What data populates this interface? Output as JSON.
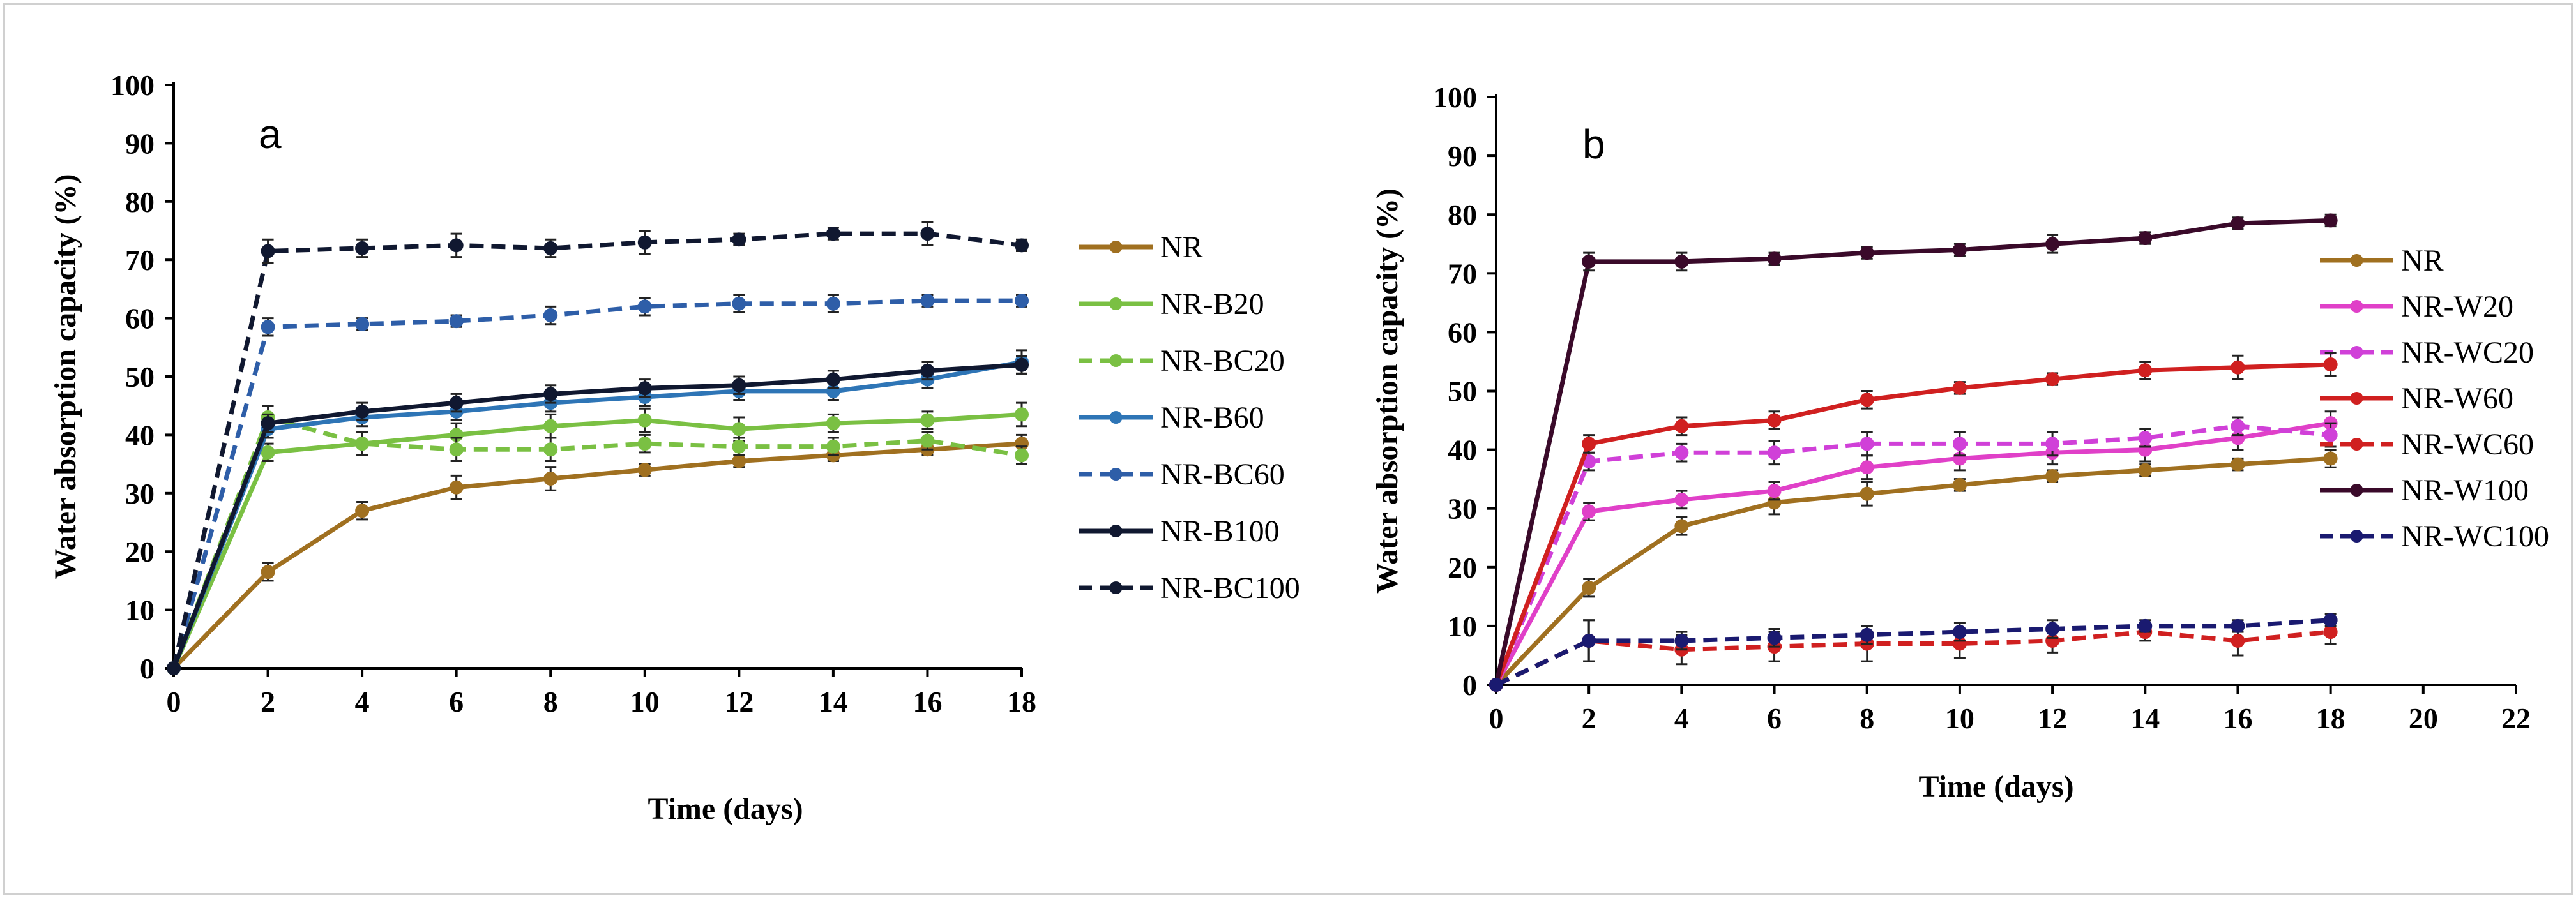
{
  "chart_data": [
    {
      "type": "line",
      "panel_label": "a",
      "title": "",
      "xlabel": "Time (days)",
      "ylabel": "Water absorption capacity (%)",
      "xlim": [
        0,
        18
      ],
      "ylim": [
        0,
        100
      ],
      "xticks": [
        "0",
        "2",
        "4",
        "6",
        "8",
        "10",
        "12",
        "14",
        "16",
        "18"
      ],
      "yticks": [
        "0",
        "10",
        "20",
        "30",
        "40",
        "50",
        "60",
        "70",
        "80",
        "90",
        "100"
      ],
      "grid": false,
      "legend_position": "right",
      "x": [
        0,
        2,
        4,
        6,
        8,
        10,
        12,
        14,
        16,
        18
      ],
      "series": [
        {
          "name": "NR",
          "color": "#A07020",
          "dashed": false,
          "values": [
            0,
            16.5,
            27,
            31,
            32.5,
            34,
            35.5,
            36.5,
            37.5,
            38.5
          ],
          "error": [
            0,
            1.5,
            1.5,
            2,
            2,
            1,
            1,
            1,
            1,
            1.5
          ]
        },
        {
          "name": "NR-B20",
          "color": "#7AC043",
          "dashed": false,
          "values": [
            0,
            37,
            38.5,
            40,
            41.5,
            42.5,
            41,
            42,
            42.5,
            43.5
          ],
          "error": [
            0,
            1.5,
            2,
            2,
            2,
            2,
            2,
            1.5,
            1.5,
            2
          ]
        },
        {
          "name": "NR-BC20",
          "color": "#7AC043",
          "dashed": true,
          "values": [
            0,
            43,
            38.5,
            37.5,
            37.5,
            38.5,
            38,
            38,
            39,
            36.5
          ],
          "error": [
            0,
            2,
            2,
            2,
            2,
            1.5,
            1.5,
            1.5,
            1.5,
            1.5
          ]
        },
        {
          "name": "NR-B60",
          "color": "#2E75B6",
          "dashed": false,
          "values": [
            0,
            41,
            43,
            44,
            45.5,
            46.5,
            47.5,
            47.5,
            49.5,
            52.5
          ],
          "error": [
            0,
            1.5,
            1.5,
            1.5,
            1.5,
            1.5,
            1.5,
            1.5,
            1.5,
            2
          ]
        },
        {
          "name": "NR-BC60",
          "color": "#2E5EA8",
          "dashed": true,
          "values": [
            0,
            58.5,
            59,
            59.5,
            60.5,
            62,
            62.5,
            62.5,
            63,
            63
          ],
          "error": [
            0,
            1.5,
            1,
            1,
            1.5,
            1.5,
            1.5,
            1.5,
            1,
            1
          ]
        },
        {
          "name": "NR-B100",
          "color": "#101830",
          "dashed": false,
          "values": [
            0,
            42,
            44,
            45.5,
            47,
            48,
            48.5,
            49.5,
            51,
            52
          ],
          "error": [
            0,
            1.5,
            1.5,
            1.5,
            1.5,
            1.5,
            1.5,
            1.5,
            1.5,
            1.5
          ]
        },
        {
          "name": "NR-BC100",
          "color": "#101830",
          "dashed": true,
          "values": [
            0,
            71.5,
            72,
            72.5,
            72,
            73,
            73.5,
            74.5,
            74.5,
            72.5
          ],
          "error": [
            0,
            2,
            1.5,
            2,
            1.5,
            2,
            1,
            1,
            2,
            1
          ]
        }
      ]
    },
    {
      "type": "line",
      "panel_label": "b",
      "title": "",
      "xlabel": "Time (days)",
      "ylabel": "Water absorption capacity (%)",
      "xlim": [
        0,
        22
      ],
      "ylim": [
        0,
        100
      ],
      "xticks": [
        "0",
        "2",
        "4",
        "6",
        "8",
        "10",
        "12",
        "14",
        "16",
        "18",
        "20",
        "22"
      ],
      "yticks": [
        "0",
        "10",
        "20",
        "30",
        "40",
        "50",
        "60",
        "70",
        "80",
        "90",
        "100"
      ],
      "grid": false,
      "legend_position": "right",
      "x": [
        0,
        2,
        4,
        6,
        8,
        10,
        12,
        14,
        16,
        18
      ],
      "series": [
        {
          "name": "NR",
          "color": "#A07020",
          "dashed": false,
          "values": [
            0,
            16.5,
            27,
            31,
            32.5,
            34,
            35.5,
            36.5,
            37.5,
            38.5
          ],
          "error": [
            0,
            1.5,
            1.5,
            2,
            2,
            1,
            1,
            1,
            1,
            1.5
          ]
        },
        {
          "name": "NR-W20",
          "color": "#E040C8",
          "dashed": false,
          "values": [
            0,
            29.5,
            31.5,
            33,
            37,
            38.5,
            39.5,
            40,
            42,
            44.5
          ],
          "error": [
            0,
            1.5,
            1.5,
            1.5,
            2,
            2,
            2,
            2,
            2,
            2
          ]
        },
        {
          "name": "NR-WC20",
          "color": "#D040D8",
          "dashed": true,
          "values": [
            0,
            38,
            39.5,
            39.5,
            41,
            41,
            41,
            42,
            44,
            42.5
          ],
          "error": [
            0,
            1.5,
            1.5,
            2,
            2,
            2,
            2,
            1.5,
            1.5,
            2
          ]
        },
        {
          "name": "NR-W60",
          "color": "#D02020",
          "dashed": false,
          "values": [
            0,
            41,
            44,
            45,
            48.5,
            50.5,
            52,
            53.5,
            54,
            54.5
          ],
          "error": [
            0,
            1.5,
            1.5,
            1.5,
            1.5,
            1,
            1,
            1.5,
            2,
            2
          ]
        },
        {
          "name": "NR-WC60",
          "color": "#D02020",
          "dashed": true,
          "values": [
            0,
            7.5,
            6,
            6.5,
            7,
            7,
            7.5,
            9,
            7.5,
            9
          ],
          "error": [
            0,
            3.5,
            2.5,
            2.5,
            3,
            2.5,
            2,
            1.5,
            2.5,
            2
          ]
        },
        {
          "name": "NR-W100",
          "color": "#3A0A2A",
          "dashed": false,
          "values": [
            0,
            72,
            72,
            72.5,
            73.5,
            74,
            75,
            76,
            78.5,
            79
          ],
          "error": [
            0,
            1.5,
            1.5,
            1,
            1,
            1,
            1.5,
            1,
            1,
            1
          ]
        },
        {
          "name": "NR-WC100",
          "color": "#1A1A70",
          "dashed": true,
          "values": [
            0,
            7.5,
            7.5,
            8,
            8.5,
            9,
            9.5,
            10,
            10,
            11
          ],
          "error": [
            0,
            3.5,
            1.5,
            1.5,
            1.5,
            1.5,
            1.5,
            1,
            1,
            1
          ]
        }
      ]
    }
  ]
}
